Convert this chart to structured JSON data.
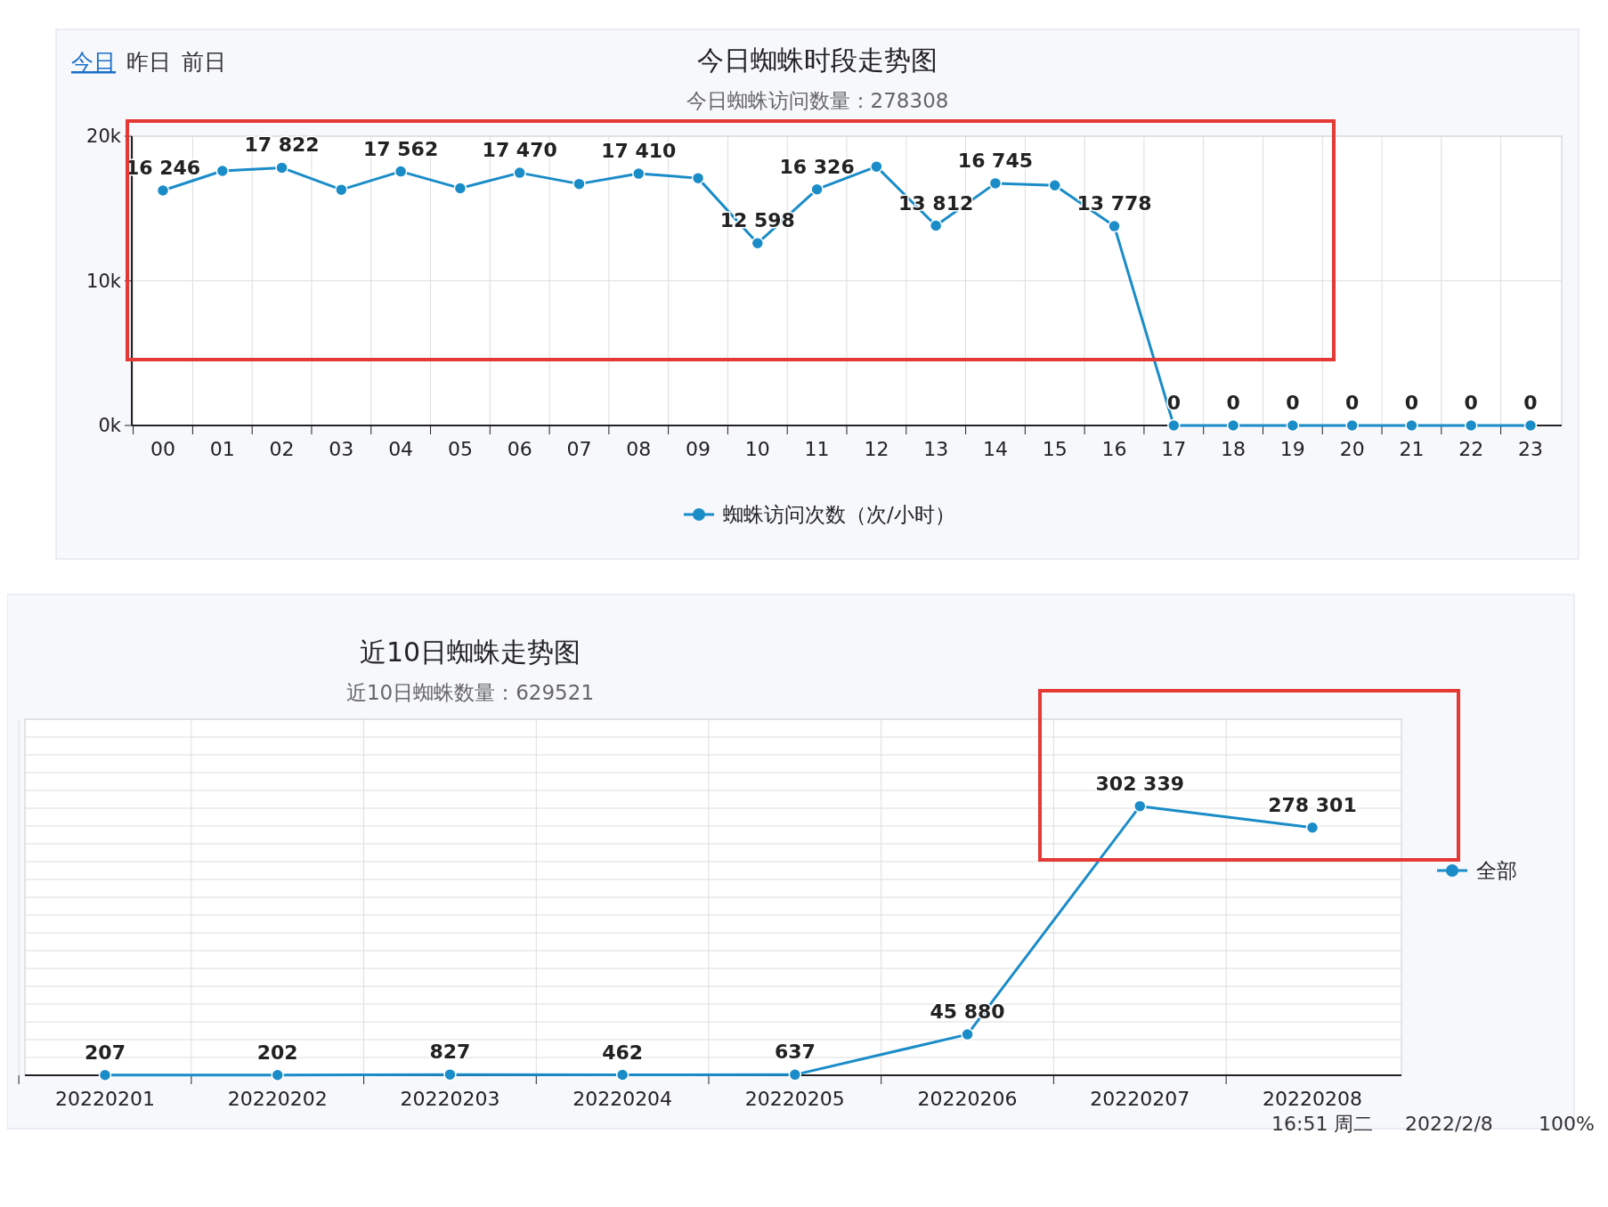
{
  "chart_data": [
    {
      "type": "line",
      "title": "今日蜘蛛时段走势图",
      "subtitle": "今日蜘蛛访问数量：278308",
      "annotations": [
        "今日",
        "昨日",
        "前日"
      ],
      "categories": [
        "00",
        "01",
        "02",
        "03",
        "04",
        "05",
        "06",
        "07",
        "08",
        "09",
        "10",
        "11",
        "12",
        "13",
        "14",
        "15",
        "16",
        "17",
        "18",
        "19",
        "20",
        "21",
        "22",
        "23"
      ],
      "series": [
        {
          "name": "蜘蛛访问次数（次/小时）",
          "color": "#1a8cc8",
          "values": [
            16246,
            17600,
            17822,
            16300,
            17562,
            16400,
            17470,
            16700,
            17410,
            17100,
            12598,
            16326,
            17900,
            13812,
            16745,
            16600,
            13778,
            0,
            0,
            0,
            0,
            0,
            0,
            0
          ],
          "value_labels": [
            "16 246",
            null,
            "17 822",
            null,
            "17 562",
            null,
            "17 470",
            null,
            "17 410",
            null,
            "12 598",
            "16 326",
            null,
            "13 812",
            "16 745",
            null,
            "13 778",
            "0",
            "0",
            "0",
            "0",
            "0",
            "0",
            "0"
          ]
        }
      ],
      "ylim": [
        0,
        20000
      ],
      "yticks": [
        {
          "value": 0,
          "label": "0k"
        },
        {
          "value": 10000,
          "label": "10k"
        },
        {
          "value": 20000,
          "label": "20k"
        }
      ],
      "grid": true,
      "legend": "bottom",
      "marker": "circle",
      "line_style": "solid"
    },
    {
      "type": "line",
      "title": "近10日蜘蛛走势图",
      "subtitle": "近10日蜘蛛数量：629521",
      "annotations": [
        "16:51 周二",
        "2022/2/8",
        "100%"
      ],
      "categories": [
        "20220201",
        "20220202",
        "20220203",
        "20220204",
        "20220205",
        "20220206",
        "20220207",
        "20220208"
      ],
      "ylim": [
        0,
        400000
      ],
      "series": [
        {
          "name": "全部",
          "color": "#1a8cc8",
          "values": [
            207,
            202,
            827,
            462,
            637,
            45880,
            302339,
            278301
          ],
          "value_labels": [
            "207",
            "202",
            "827",
            "462",
            "637",
            "45 880",
            "302 339",
            "278 301"
          ]
        }
      ],
      "grid": true,
      "legend": "right",
      "marker": "circle",
      "line_style": "solid"
    }
  ]
}
